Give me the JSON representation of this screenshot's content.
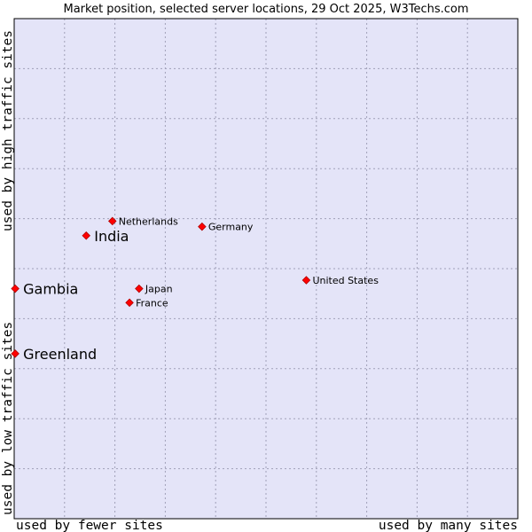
{
  "chart_data": {
    "type": "scatter",
    "title": "Market position, selected server locations, 29 Oct 2025, W3Techs.com",
    "xlabel_left": "used by fewer sites",
    "xlabel_right": "used by many sites",
    "ylabel_top": "used by high traffic sites",
    "ylabel_bottom": "used by low traffic sites",
    "xlim": [
      0,
      100
    ],
    "ylim": [
      0,
      100
    ],
    "grid": true,
    "grid_divisions": 10,
    "colors": {
      "plot_background": "#e4e4f8",
      "plot_border": "#000000",
      "marker": "#ff0000",
      "marker_outline": "#b00000"
    },
    "points": [
      {
        "name": "Netherlands",
        "x": 19.5,
        "y": 59.5,
        "emphasis": false
      },
      {
        "name": "India",
        "x": 14.3,
        "y": 56.6,
        "emphasis": true
      },
      {
        "name": "Germany",
        "x": 37.3,
        "y": 58.4,
        "emphasis": false
      },
      {
        "name": "United States",
        "x": 58.0,
        "y": 47.7,
        "emphasis": false
      },
      {
        "name": "Gambia",
        "x": 0.2,
        "y": 46.0,
        "emphasis": true
      },
      {
        "name": "Japan",
        "x": 24.8,
        "y": 46.0,
        "emphasis": false
      },
      {
        "name": "France",
        "x": 22.9,
        "y": 43.2,
        "emphasis": false
      },
      {
        "name": "Greenland",
        "x": 0.2,
        "y": 33.0,
        "emphasis": true
      }
    ]
  }
}
